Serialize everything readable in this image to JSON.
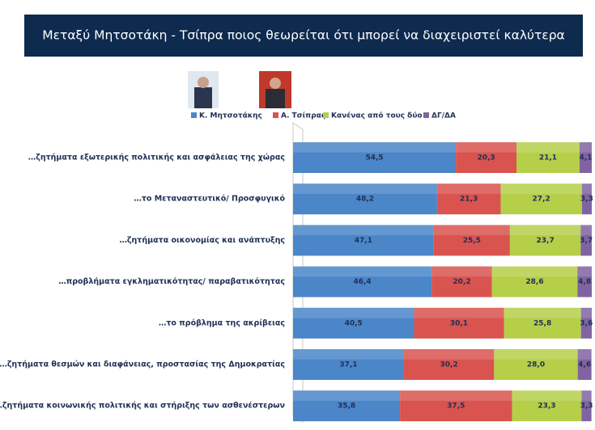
{
  "chart_data": {
    "type": "stacked-bar-horizontal",
    "title": "Μεταξύ Μητσοτάκη - Τσίπρα ποιος θεωρείται ότι μπορεί να διαχειριστεί καλύτερα",
    "categories": [
      "…ζητήματα εξωτερικής πολιτικής και ασφάλειας της χώρας",
      "…το Μεταναστευτικό/ Προσφυγικό",
      "…ζητήματα οικονομίας και ανάπτυξης",
      "…προβλήματα εγκληματικότητας/ παραβατικότητας",
      "…το πρόβλημα της ακρίβειας",
      "…ζητήματα θεσμών και διαφάνειας, προστασίας της Δημοκρατίας",
      "…ζητήματα κοινωνικής πολιτικής και στήριξης των ασθενέστερων"
    ],
    "xlim": [
      0,
      100
    ],
    "series": [
      {
        "name": "Κ. Μητσοτάκης",
        "color": "#4a86c8",
        "values": [
          54.5,
          48.2,
          47.1,
          46.4,
          40.5,
          37.1,
          35.8
        ],
        "value_labels": [
          "54,5",
          "48,2",
          "47,1",
          "46,4",
          "40,5",
          "37,1",
          "35,8"
        ]
      },
      {
        "name": "Α. Τσίπρας",
        "color": "#d9534f",
        "values": [
          20.3,
          21.3,
          25.5,
          20.2,
          30.1,
          30.2,
          37.5
        ],
        "value_labels": [
          "20,3",
          "21,3",
          "25,5",
          "20,2",
          "30,1",
          "30,2",
          "37,5"
        ]
      },
      {
        "name": "Κανένας από τους δύο",
        "color": "#b5cf49",
        "values": [
          21.1,
          27.2,
          23.7,
          28.6,
          25.8,
          28.0,
          23.3
        ],
        "value_labels": [
          "21,1",
          "27,2",
          "23,7",
          "28,6",
          "25,8",
          "28,0",
          "23,3"
        ]
      },
      {
        "name": "ΔΓ/ΔΑ",
        "color": "#8064a2",
        "values": [
          4.1,
          3.3,
          3.7,
          4.8,
          3.6,
          4.6,
          3.3
        ],
        "value_labels": [
          "4,1",
          "3,3",
          "3,7",
          "4,8",
          "3,6",
          "4,6",
          "3,3"
        ]
      }
    ]
  }
}
